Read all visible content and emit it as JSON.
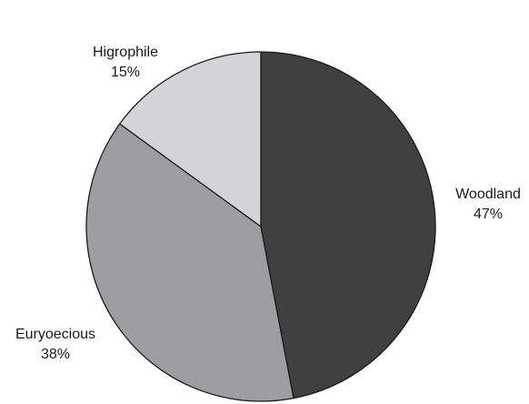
{
  "chart_data": {
    "type": "pie",
    "title": "",
    "slices": [
      {
        "label": "Woodland",
        "value": 47,
        "value_label": "47%",
        "color": "#404040"
      },
      {
        "label": "Euryoecious",
        "value": 38,
        "value_label": "38%",
        "color": "#9d9e9f"
      },
      {
        "label": "Higrophile",
        "value": 15,
        "value_label": "15%",
        "color": "#d3d4d5"
      }
    ],
    "start": "top",
    "direction": "clockwise",
    "legend": "none",
    "stroke_color": "#1a1a1a"
  }
}
